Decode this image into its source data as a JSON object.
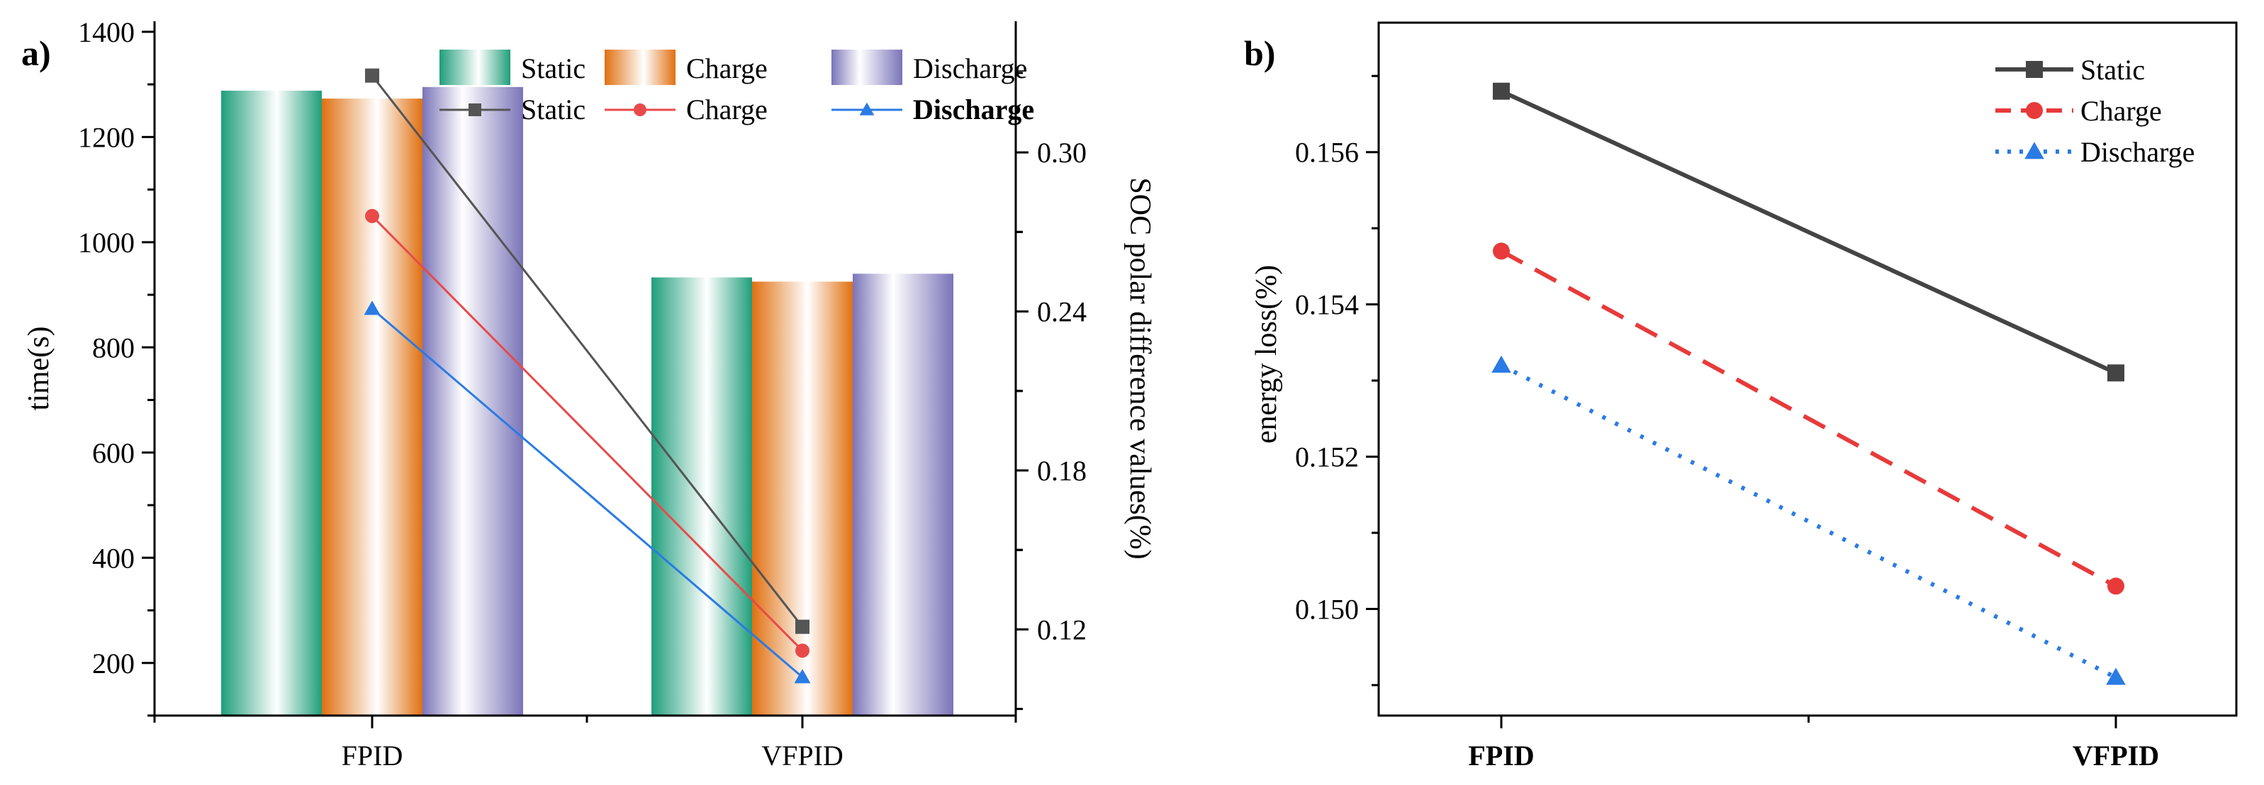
{
  "chart_data": [
    {
      "panel_label": "a)",
      "type": "bar",
      "categories": [
        "FPID",
        "VFPID"
      ],
      "series": [
        {
          "name": "Static",
          "values": [
            1288,
            933
          ]
        },
        {
          "name": "Charge",
          "values": [
            1273,
            925
          ]
        },
        {
          "name": "Discharge",
          "values": [
            1295,
            940
          ]
        }
      ],
      "line_series": [
        {
          "name": "Static",
          "values": [
            0.329,
            0.121
          ],
          "marker": "square"
        },
        {
          "name": "Charge",
          "values": [
            0.276,
            0.112
          ],
          "marker": "circle"
        },
        {
          "name": "Discharge",
          "values": [
            0.241,
            0.102
          ],
          "marker": "triangle"
        }
      ],
      "ylabel": "time(s)",
      "ylim": [
        100,
        1420
      ],
      "yticks": [
        200,
        400,
        600,
        800,
        1000,
        1200,
        1400
      ],
      "y2label": "SOC polar difference values(%)",
      "y2lim": [
        0.0875,
        0.3495
      ],
      "y2ticks": [
        "0.12",
        "0.18",
        "0.24",
        "0.30"
      ],
      "legend_position": "top-right",
      "colors": {
        "Static": "#1f9e7a",
        "Charge": "#e07010",
        "Discharge": "#7a74b8",
        "line_Static": "#555555",
        "line_Charge": "#e84a4a",
        "line_Discharge": "#2a7be4"
      }
    },
    {
      "panel_label": "b)",
      "type": "line",
      "categories": [
        "FPID",
        "VFPID"
      ],
      "series": [
        {
          "name": "Static",
          "values": [
            0.1568,
            0.1531
          ],
          "marker": "square",
          "style": "solid"
        },
        {
          "name": "Charge",
          "values": [
            0.1547,
            0.1503
          ],
          "marker": "circle",
          "style": "dashed"
        },
        {
          "name": "Discharge",
          "values": [
            0.1532,
            0.1491
          ],
          "marker": "triangle",
          "style": "dotted"
        }
      ],
      "ylabel": "energy loss(%)",
      "ylim": [
        0.1486,
        0.1577
      ],
      "yticks": [
        "0.150",
        "0.152",
        "0.154",
        "0.156"
      ],
      "legend_position": "top-right",
      "colors": {
        "Static": "#444444",
        "Charge": "#e83a3a",
        "Discharge": "#2a7be4"
      }
    }
  ]
}
